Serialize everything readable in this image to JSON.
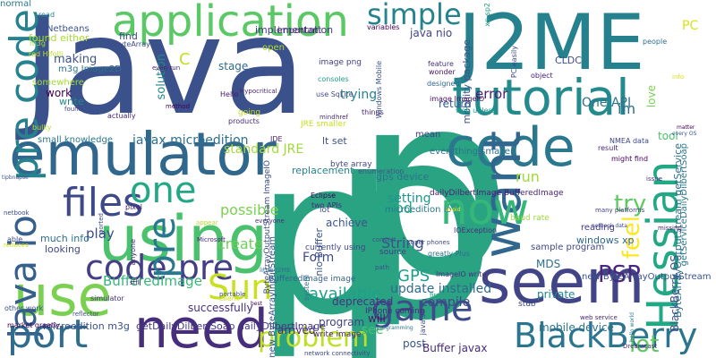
{
  "words": [
    {
      "text": "p",
      "color": "#2aa383",
      "rot": 0
    },
    {
      "text": "Java",
      "color": "#3b518b",
      "rot": 0
    },
    {
      "text": "p",
      "color": "#2aa383",
      "rot": 0
    },
    {
      "text": "J2ME",
      "color": "#26818e",
      "rot": 0
    },
    {
      "text": "p",
      "color": "#2aa383",
      "rot": 0
    },
    {
      "text": "tutorial",
      "color": "#238a8d",
      "rot": 0
    },
    {
      "text": "code",
      "color": "#2a778e",
      "rot": 0
    },
    {
      "text": "emulator",
      "color": "#30678d",
      "rot": 0
    },
    {
      "text": "using",
      "color": "#4ac16d",
      "rot": 0
    },
    {
      "text": "use",
      "color": "#7ad151",
      "rot": 0
    },
    {
      "text": "need",
      "color": "#472e7c",
      "rot": 0
    },
    {
      "text": "seem",
      "color": "#414487",
      "rot": 0
    },
    {
      "text": "want",
      "color": "#31678e",
      "rot": 90
    },
    {
      "text": "application",
      "color": "#5ac864",
      "rot": 0
    },
    {
      "text": "pre code",
      "color": "#26828e",
      "rot": 90
    },
    {
      "text": "Hessian",
      "color": "#22a884",
      "rot": 90
    },
    {
      "text": "BlackBerry",
      "color": "#2b758e",
      "rot": 0
    },
    {
      "text": "now",
      "color": "#35b779",
      "rot": 0
    },
    {
      "text": "files",
      "color": "#3e4989",
      "rot": 0
    },
    {
      "text": "one",
      "color": "#22a884",
      "rot": 0
    },
    {
      "text": "java io",
      "color": "#355f8d",
      "rot": 90
    },
    {
      "text": "code pre",
      "color": "#433e85",
      "rot": 0
    },
    {
      "text": "port",
      "color": "#2f6c8e",
      "rot": 0
    },
    {
      "text": "game",
      "color": "#3e4c8a",
      "rot": 0
    },
    {
      "text": "problem",
      "color": "#bddf26",
      "rot": 0
    },
    {
      "text": "Sun",
      "color": "#c8e020",
      "rot": 0
    },
    {
      "text": "simple",
      "color": "#25838e",
      "rot": 0
    },
    {
      "text": "pre",
      "color": "#29798e",
      "rot": 90
    },
    {
      "text": "try",
      "color": "#5ec962",
      "rot": 0
    },
    {
      "text": "feel",
      "color": "#fde725",
      "rot": 90
    },
    {
      "text": "PSP",
      "color": "#482878",
      "rot": 0
    },
    {
      "text": "lot",
      "color": "#5ec962",
      "rot": 0
    },
    {
      "text": "GPS",
      "color": "#1f9e89",
      "rot": 0
    },
    {
      "text": "Form",
      "color": "#3f4889",
      "rot": 0
    },
    {
      "text": "String",
      "color": "#3b528b",
      "rot": 0
    },
    {
      "text": "play",
      "color": "#3e4a89",
      "rot": 0
    },
    {
      "text": "possible",
      "color": "#7ad151",
      "rot": 0
    },
    {
      "text": "available",
      "color": "#1fa088",
      "rot": 0
    },
    {
      "text": "good",
      "color": "#22a785",
      "rot": 0
    },
    {
      "text": "create",
      "color": "#6ece58",
      "rot": 0
    },
    {
      "text": "BufferedImage",
      "color": "#35b779",
      "rot": 0
    },
    {
      "text": "game",
      "color": "#443983",
      "rot": 0
    },
    {
      "text": "PC",
      "color": "#d8e219",
      "rot": 0
    },
    {
      "text": "One API",
      "color": "#2d718e",
      "rot": 0
    },
    {
      "text": "javax microedition",
      "color": "#2c728e",
      "rot": 0
    },
    {
      "text": "standard JRE",
      "color": "#a0da39",
      "rot": 0
    },
    {
      "text": "work",
      "color": "#440154",
      "rot": 0
    },
    {
      "text": "making",
      "color": "#3b528b",
      "rot": 0
    },
    {
      "text": "solution",
      "color": "#24878e",
      "rot": 90
    },
    {
      "text": "stage",
      "color": "#31688e",
      "rot": 0
    },
    {
      "text": "trying",
      "color": "#26828e",
      "rot": 0
    },
    {
      "text": "return",
      "color": "#365c8d",
      "rot": 0
    },
    {
      "text": "error",
      "color": "#482071",
      "rot": 0
    },
    {
      "text": "love",
      "color": "#7ad151",
      "rot": 90
    },
    {
      "text": "tool",
      "color": "#4ac16d",
      "rot": 0
    },
    {
      "text": "im",
      "color": "#2e6e8e",
      "rot": 0
    },
    {
      "text": "find",
      "color": "#3f4788",
      "rot": 0
    },
    {
      "text": "C",
      "color": "#c2df23",
      "rot": 0
    },
    {
      "text": "open",
      "color": "#addc30",
      "rot": 0
    },
    {
      "text": "important",
      "color": "#482173",
      "rot": 0
    },
    {
      "text": "implementation",
      "color": "#453781",
      "rot": 0
    },
    {
      "text": "java nio",
      "color": "#404688",
      "rot": 0
    },
    {
      "text": "CLDC",
      "color": "#3e4c8a",
      "rot": 0
    },
    {
      "text": "mobility package",
      "color": "#3b528b",
      "rot": 90
    },
    {
      "text": "Netbeans",
      "color": "#3b528b",
      "rot": 0
    },
    {
      "text": "found either",
      "color": "#a8db34",
      "rot": 0
    },
    {
      "text": "m3g Image2D",
      "color": "#2d708e",
      "rot": 0
    },
    {
      "text": "somewhere",
      "color": "#a2da37",
      "rot": 0
    },
    {
      "text": "small knowledge",
      "color": "#2a788e",
      "rot": 0
    },
    {
      "text": "write",
      "color": "#24878e",
      "rot": 0
    },
    {
      "text": "found",
      "color": "#3f4788",
      "rot": 0
    },
    {
      "text": "actually",
      "color": "#482576",
      "rot": 0
    },
    {
      "text": "replacement",
      "color": "#26828e",
      "rot": 0
    },
    {
      "text": "gps device",
      "color": "#2c738e",
      "rot": 0
    },
    {
      "text": "mean",
      "color": "#433e85",
      "rot": 0
    },
    {
      "text": "lt set",
      "color": "#3b528b",
      "rot": 0
    },
    {
      "text": "setting",
      "color": "#1f968b",
      "rot": 0
    },
    {
      "text": "run",
      "color": "#a0da39",
      "rot": 0
    },
    {
      "text": "reading",
      "color": "#453882",
      "rot": 0
    },
    {
      "text": "windows xp",
      "color": "#30678d",
      "rot": 0
    },
    {
      "text": "achieve",
      "color": "#39568c",
      "rot": 0
    },
    {
      "text": "looking",
      "color": "#3f4889",
      "rot": 0
    },
    {
      "text": "successfully",
      "color": "#472d7b",
      "rot": 0
    },
    {
      "text": "program",
      "color": "#414487",
      "rot": 0
    },
    {
      "text": "deprecated",
      "color": "#46337f",
      "rot": 0
    },
    {
      "text": "update installed",
      "color": "#2f6b8e",
      "rot": 0
    },
    {
      "text": "will",
      "color": "#481769",
      "rot": 0
    },
    {
      "text": "MDS",
      "color": "#2d718e",
      "rot": 0
    },
    {
      "text": "private",
      "color": "#24868e",
      "rot": 0
    },
    {
      "text": "compile",
      "color": "#3f4889",
      "rot": 0
    },
    {
      "text": "see",
      "color": "#4ac16d",
      "rot": 0
    },
    {
      "text": "arrived",
      "color": "#482677",
      "rot": 0
    },
    {
      "text": "post",
      "color": "#3a548c",
      "rot": 0
    },
    {
      "text": "Buffer javax",
      "color": "#472c7a",
      "rot": 0
    },
    {
      "text": "mobile device",
      "color": "#2c728e",
      "rot": 0
    },
    {
      "text": "BlackBerry OS",
      "color": "#3d4d8a",
      "rot": 90
    },
    {
      "text": "ByteArrayOutputStream getService",
      "color": "#2c738e",
      "rot": 90
    },
    {
      "text": "getServiceDailyDilbertSoap",
      "color": "#2a788e",
      "rot": 90
    },
    {
      "text": "new ByteArrayOutputStream",
      "color": "#3b518b",
      "rot": 0
    },
    {
      "text": "dailyDilbertImage BufferedImage",
      "color": "#482475",
      "rot": 0
    },
    {
      "text": "getDailyDilbertSoap dailyDilbertImage",
      "color": "#453781",
      "rot": 0
    },
    {
      "text": "microedition m3g",
      "color": "#3b518b",
      "rot": 0
    },
    {
      "text": "microedition io",
      "color": "#2a788e",
      "rot": 0
    },
    {
      "text": "ByteArrayOutputStream ImageIO",
      "color": "#3e4a89",
      "rot": 90
    },
    {
      "text": "new ByteArrayInputStream",
      "color": "#3b518b",
      "rot": 90
    },
    {
      "text": "nio Buffer",
      "color": "#3b528b",
      "rot": 90
    },
    {
      "text": "everything smaller",
      "color": "#2c728e",
      "rot": 0
    },
    {
      "text": "byte array",
      "color": "#3f4788",
      "rot": 0
    },
    {
      "text": "enumeration",
      "color": "#3b528b",
      "rot": 0
    },
    {
      "text": "write image",
      "color": "#482878",
      "rot": 0
    },
    {
      "text": "image ImageIO",
      "color": "#471063",
      "rot": 0
    },
    {
      "text": "image png",
      "color": "#433e85",
      "rot": 0
    },
    {
      "text": "ImageIO write",
      "color": "#46307e",
      "rot": 0
    },
    {
      "text": "IPhone coming",
      "color": "#482677",
      "rot": 0
    },
    {
      "text": "currently using",
      "color": "#3f4788",
      "rot": 0
    },
    {
      "text": "many platforms",
      "color": "#433e85",
      "rot": 0
    },
    {
      "text": "sample program",
      "color": "#3e4989",
      "rot": 0
    },
    {
      "text": "simulator",
      "color": "#46337f",
      "rot": 0
    },
    {
      "text": "BufferedImage image",
      "color": "#33628d",
      "rot": 0
    },
    {
      "text": "m3g",
      "color": "#a2da37",
      "rot": 0
    },
    {
      "text": "much info",
      "color": "#2e6e8e",
      "rot": 0
    },
    {
      "text": "xp sp2",
      "color": "#1f9f88",
      "rot": 90
    },
    {
      "text": "variables",
      "color": "#440154",
      "rot": 0
    },
    {
      "text": "feature",
      "color": "#46337f",
      "rot": 0
    },
    {
      "text": "even run",
      "color": "#481f70",
      "rot": 0
    },
    {
      "text": "Hypocritical",
      "color": "#482475",
      "rot": 0
    },
    {
      "text": "Hello",
      "color": "#48186a",
      "rot": 0
    },
    {
      "text": "method",
      "color": "#440154",
      "rot": 0
    },
    {
      "text": "going",
      "color": "#c0df25",
      "rot": 0
    },
    {
      "text": "products",
      "color": "#482979",
      "rot": 0
    },
    {
      "text": "JRE smaller",
      "color": "#c8e020",
      "rot": 0
    },
    {
      "text": "href",
      "color": "#482173",
      "rot": 0
    },
    {
      "text": "mind",
      "color": "#472d7b",
      "rot": 0
    },
    {
      "text": "IDE",
      "color": "#482475",
      "rot": 0
    },
    {
      "text": "use SqLite",
      "color": "#3e4c8a",
      "rot": 0
    },
    {
      "text": "consoles",
      "color": "#1fa188",
      "rot": 0
    },
    {
      "text": "things",
      "color": "#482677",
      "rot": 0
    },
    {
      "text": "wonder",
      "color": "#481467",
      "rot": 0
    },
    {
      "text": "designed",
      "color": "#31688e",
      "rot": 0
    },
    {
      "text": "web unless",
      "color": "#1f9e89",
      "rot": 0
    },
    {
      "text": "NMEA data",
      "color": "#3f4788",
      "rot": 0
    },
    {
      "text": "result",
      "color": "#482878",
      "rot": 0
    },
    {
      "text": "might find",
      "color": "#440154",
      "rot": 0
    },
    {
      "text": "every OS",
      "color": "#3b528b",
      "rot": 0
    },
    {
      "text": "info",
      "color": "#dde318",
      "rot": 0
    },
    {
      "text": "object",
      "color": "#482173",
      "rot": 0
    },
    {
      "text": "people",
      "color": "#2e6f8e",
      "rot": 0
    },
    {
      "text": "PC easily",
      "color": "#3e4989",
      "rot": 90
    },
    {
      "text": "Windows Mobile",
      "color": "#3b528b",
      "rot": 90
    },
    {
      "text": "read",
      "color": "#25858e",
      "rot": 0
    },
    {
      "text": "red Hifolli",
      "color": "#c0df25",
      "rot": 0
    },
    {
      "text": "bulky",
      "color": "#b5de2b",
      "rot": 0
    },
    {
      "text": "toByteArray",
      "color": "#3e4a89",
      "rot": 0
    },
    {
      "text": "able",
      "color": "#3e4a89",
      "rot": 0
    },
    {
      "text": "netbook",
      "color": "#3e4989",
      "rot": 0
    },
    {
      "text": "reduces",
      "color": "#d2e21b",
      "rot": 0
    },
    {
      "text": "everyone",
      "color": "#46327e",
      "rot": 0
    },
    {
      "text": "ported",
      "color": "#3e4c8a",
      "rot": 90
    },
    {
      "text": "pixel",
      "color": "#482071",
      "rot": 0
    },
    {
      "text": "anyone",
      "color": "#482475",
      "rot": 90
    },
    {
      "text": "appear",
      "color": "#b5de2b",
      "rot": 0
    },
    {
      "text": "Eclipse",
      "color": "#440154",
      "rot": 0
    },
    {
      "text": "two APIs",
      "color": "#482878",
      "rot": 0
    },
    {
      "text": "super phones",
      "color": "#3e4c8a",
      "rot": 0
    },
    {
      "text": "greatly Plus",
      "color": "#2e6e8e",
      "rot": 0
    },
    {
      "text": "IOException",
      "color": "#472c7a",
      "rot": 0
    },
    {
      "text": "convert",
      "color": "#3b528b",
      "rot": 0
    },
    {
      "text": "source",
      "color": "#433e85",
      "rot": 0
    },
    {
      "text": "missing",
      "color": "#482071",
      "rot": 0
    },
    {
      "text": "baud rate",
      "color": "#9bd93c",
      "rot": 0
    },
    {
      "text": "fire",
      "color": "#22a785",
      "rot": 0
    },
    {
      "text": "stub",
      "color": "#3f4788",
      "rot": 0
    },
    {
      "text": "still",
      "color": "#48186a",
      "rot": 0
    },
    {
      "text": "portable",
      "color": "#3b528b",
      "rot": 0
    },
    {
      "text": "Microsoft",
      "color": "#482475",
      "rot": 0
    },
    {
      "text": "client",
      "color": "#d0e11c",
      "rot": 0
    },
    {
      "text": "little J2ME",
      "color": "#2d718e",
      "rot": 0
    },
    {
      "text": "system",
      "color": "#2c728e",
      "rot": 90
    },
    {
      "text": "path",
      "color": "#3b528b",
      "rot": 0
    },
    {
      "text": "best",
      "color": "#440154",
      "rot": 0
    },
    {
      "text": "avoid",
      "color": "#fde725",
      "rot": 0
    },
    {
      "text": "java se",
      "color": "#3f4788",
      "rot": 90
    },
    {
      "text": "network connectivity",
      "color": "#3e4989",
      "rot": 0
    },
    {
      "text": "programming",
      "color": "#2c728e",
      "rot": 0
    },
    {
      "text": "web service",
      "color": "#482677",
      "rot": 0
    },
    {
      "text": "Dreamcast",
      "color": "#472d7b",
      "rot": 0
    },
    {
      "text": "other work",
      "color": "#3b528b",
      "rot": 0
    },
    {
      "text": "reflector",
      "color": "#3b528b",
      "rot": 0
    },
    {
      "text": "market greatly",
      "color": "#440154",
      "rot": 0
    },
    {
      "text": "issue",
      "color": "#472f7d",
      "rot": 0
    },
    {
      "text": "hello world",
      "color": "#2a788e",
      "rot": 90
    },
    {
      "text": "lot",
      "color": "#3b518b",
      "rot": 0
    },
    {
      "text": "matter",
      "color": "#440154",
      "rot": 0
    },
    {
      "text": "tipbnapse",
      "color": "#3b528b",
      "rot": 0
    },
    {
      "text": "netbook data",
      "color": "#3e4c8a",
      "rot": 0
    },
    {
      "text": "normal",
      "color": "#2a788e",
      "rot": 0
    }
  ]
}
